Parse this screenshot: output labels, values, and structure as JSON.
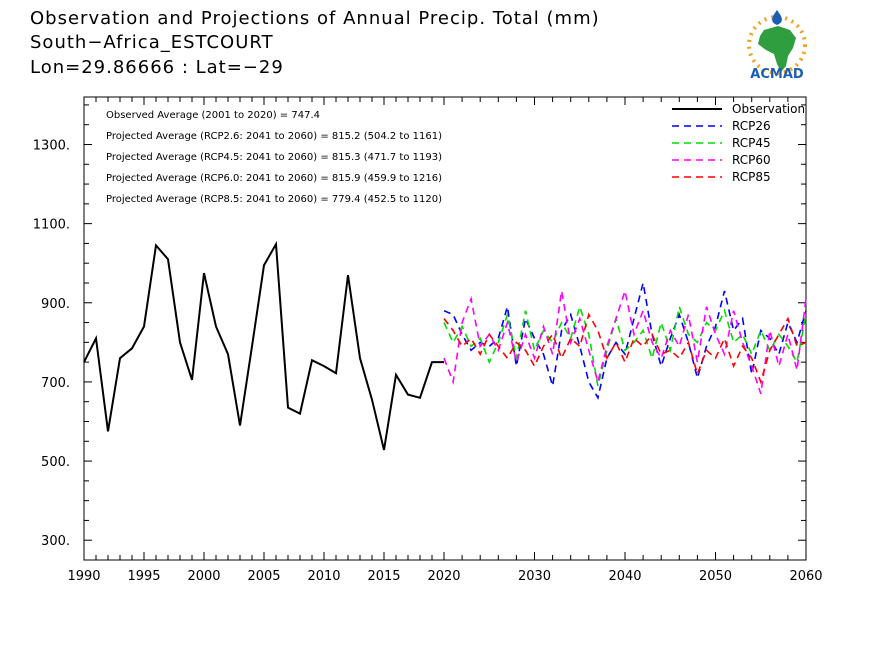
{
  "title": {
    "line1": "Observation and Projections of Annual Precip. Total (mm)",
    "line2": "South−Africa_ESTCOURT",
    "line3": "Lon=29.86666 : Lat=−29"
  },
  "logo": {
    "text": "ACMAD"
  },
  "stats": [
    "Observed Average (2001 to 2020) = 747.4",
    "Projected Average (RCP2.6: 2041 to 2060) = 815.2 (504.2 to 1161)",
    "Projected Average (RCP4.5: 2041 to 2060) = 815.3 (471.7 to 1193)",
    "Projected Average (RCP6.0: 2041 to 2060) = 815.9 (459.9 to 1216)",
    "Projected Average (RCP8.5: 2041 to 2060) = 779.4 (452.5 to 1120)"
  ],
  "chart_data": {
    "type": "line",
    "title": "Observation and Projections of Annual Precip. Total (mm)",
    "xlabel": "",
    "ylabel": "",
    "xlim": [
      1990,
      2060
    ],
    "ylim": [
      250,
      1420
    ],
    "x_ticks": [
      1990,
      1995,
      2000,
      2005,
      2010,
      2015,
      2020,
      2030,
      2040,
      2050,
      2060
    ],
    "y_ticks": [
      300,
      500,
      700,
      900,
      1100,
      1300
    ],
    "y_tick_labels": [
      "300.",
      "500.",
      "700.",
      "900.",
      "1100.",
      "1300."
    ],
    "legend_position": "top-right",
    "series": [
      {
        "name": "Observation",
        "color": "#000000",
        "style": "solid",
        "x": [
          1990,
          1991,
          1992,
          1993,
          1994,
          1995,
          1996,
          1997,
          1998,
          1999,
          2000,
          2001,
          2002,
          2003,
          2004,
          2005,
          2006,
          2007,
          2008,
          2009,
          2010,
          2011,
          2012,
          2013,
          2014,
          2015,
          2016,
          2017,
          2018,
          2019,
          2020
        ],
        "values": [
          750,
          810,
          575,
          760,
          785,
          840,
          1045,
          1010,
          800,
          705,
          975,
          840,
          770,
          590,
          790,
          995,
          1048,
          635,
          620,
          755,
          740,
          722,
          970,
          760,
          655,
          528,
          718,
          668,
          660,
          750,
          750
        ]
      },
      {
        "name": "RCP26",
        "color": "#0000ff",
        "style": "dashed",
        "x": [
          2020,
          2021,
          2022,
          2023,
          2024,
          2025,
          2026,
          2027,
          2028,
          2029,
          2030,
          2031,
          2032,
          2033,
          2034,
          2035,
          2036,
          2037,
          2038,
          2039,
          2040,
          2041,
          2042,
          2043,
          2044,
          2045,
          2046,
          2047,
          2048,
          2049,
          2050,
          2051,
          2052,
          2053,
          2054,
          2055,
          2056,
          2057,
          2058,
          2059,
          2060
        ],
        "values": [
          880,
          870,
          820,
          780,
          800,
          790,
          810,
          890,
          740,
          860,
          810,
          770,
          690,
          830,
          870,
          790,
          700,
          660,
          760,
          800,
          770,
          860,
          950,
          820,
          740,
          810,
          870,
          800,
          710,
          790,
          840,
          930,
          830,
          860,
          720,
          830,
          810,
          770,
          850,
          800,
          880
        ]
      },
      {
        "name": "RCP45",
        "color": "#00dd00",
        "style": "dashed",
        "x": [
          2020,
          2021,
          2022,
          2023,
          2024,
          2025,
          2026,
          2027,
          2028,
          2029,
          2030,
          2031,
          2032,
          2033,
          2034,
          2035,
          2036,
          2037,
          2038,
          2039,
          2040,
          2041,
          2042,
          2043,
          2044,
          2045,
          2046,
          2047,
          2048,
          2049,
          2050,
          2051,
          2052,
          2053,
          2054,
          2055,
          2056,
          2057,
          2058,
          2059,
          2060
        ],
        "values": [
          850,
          800,
          840,
          790,
          810,
          750,
          800,
          870,
          760,
          880,
          780,
          830,
          800,
          850,
          810,
          890,
          820,
          690,
          780,
          860,
          780,
          800,
          830,
          760,
          850,
          780,
          890,
          820,
          800,
          850,
          830,
          880,
          800,
          820,
          770,
          830,
          780,
          820,
          790,
          750,
          870
        ]
      },
      {
        "name": "RCP60",
        "color": "#ff00ff",
        "style": "dashed",
        "x": [
          2020,
          2021,
          2022,
          2023,
          2024,
          2025,
          2026,
          2027,
          2028,
          2029,
          2030,
          2031,
          2032,
          2033,
          2034,
          2035,
          2036,
          2037,
          2038,
          2039,
          2040,
          2041,
          2042,
          2043,
          2044,
          2045,
          2046,
          2047,
          2048,
          2049,
          2050,
          2051,
          2052,
          2053,
          2054,
          2055,
          2056,
          2057,
          2058,
          2059,
          2060
        ],
        "values": [
          760,
          700,
          850,
          910,
          790,
          820,
          780,
          850,
          750,
          820,
          760,
          840,
          770,
          930,
          800,
          860,
          780,
          700,
          790,
          860,
          930,
          820,
          880,
          800,
          760,
          830,
          790,
          870,
          750,
          890,
          820,
          770,
          880,
          800,
          740,
          670,
          830,
          740,
          820,
          730,
          910
        ]
      },
      {
        "name": "RCP85",
        "color": "#ff0000",
        "style": "dashed",
        "x": [
          2020,
          2021,
          2022,
          2023,
          2024,
          2025,
          2026,
          2027,
          2028,
          2029,
          2030,
          2031,
          2032,
          2033,
          2034,
          2035,
          2036,
          2037,
          2038,
          2039,
          2040,
          2041,
          2042,
          2043,
          2044,
          2045,
          2046,
          2047,
          2048,
          2049,
          2050,
          2051,
          2052,
          2053,
          2054,
          2055,
          2056,
          2057,
          2058,
          2059,
          2060
        ],
        "values": [
          860,
          830,
          790,
          810,
          770,
          820,
          790,
          760,
          800,
          780,
          740,
          790,
          820,
          760,
          810,
          790,
          870,
          830,
          760,
          800,
          750,
          810,
          790,
          820,
          770,
          780,
          760,
          800,
          720,
          780,
          760,
          810,
          740,
          790,
          760,
          700,
          780,
          820,
          860,
          790,
          800
        ]
      }
    ]
  }
}
